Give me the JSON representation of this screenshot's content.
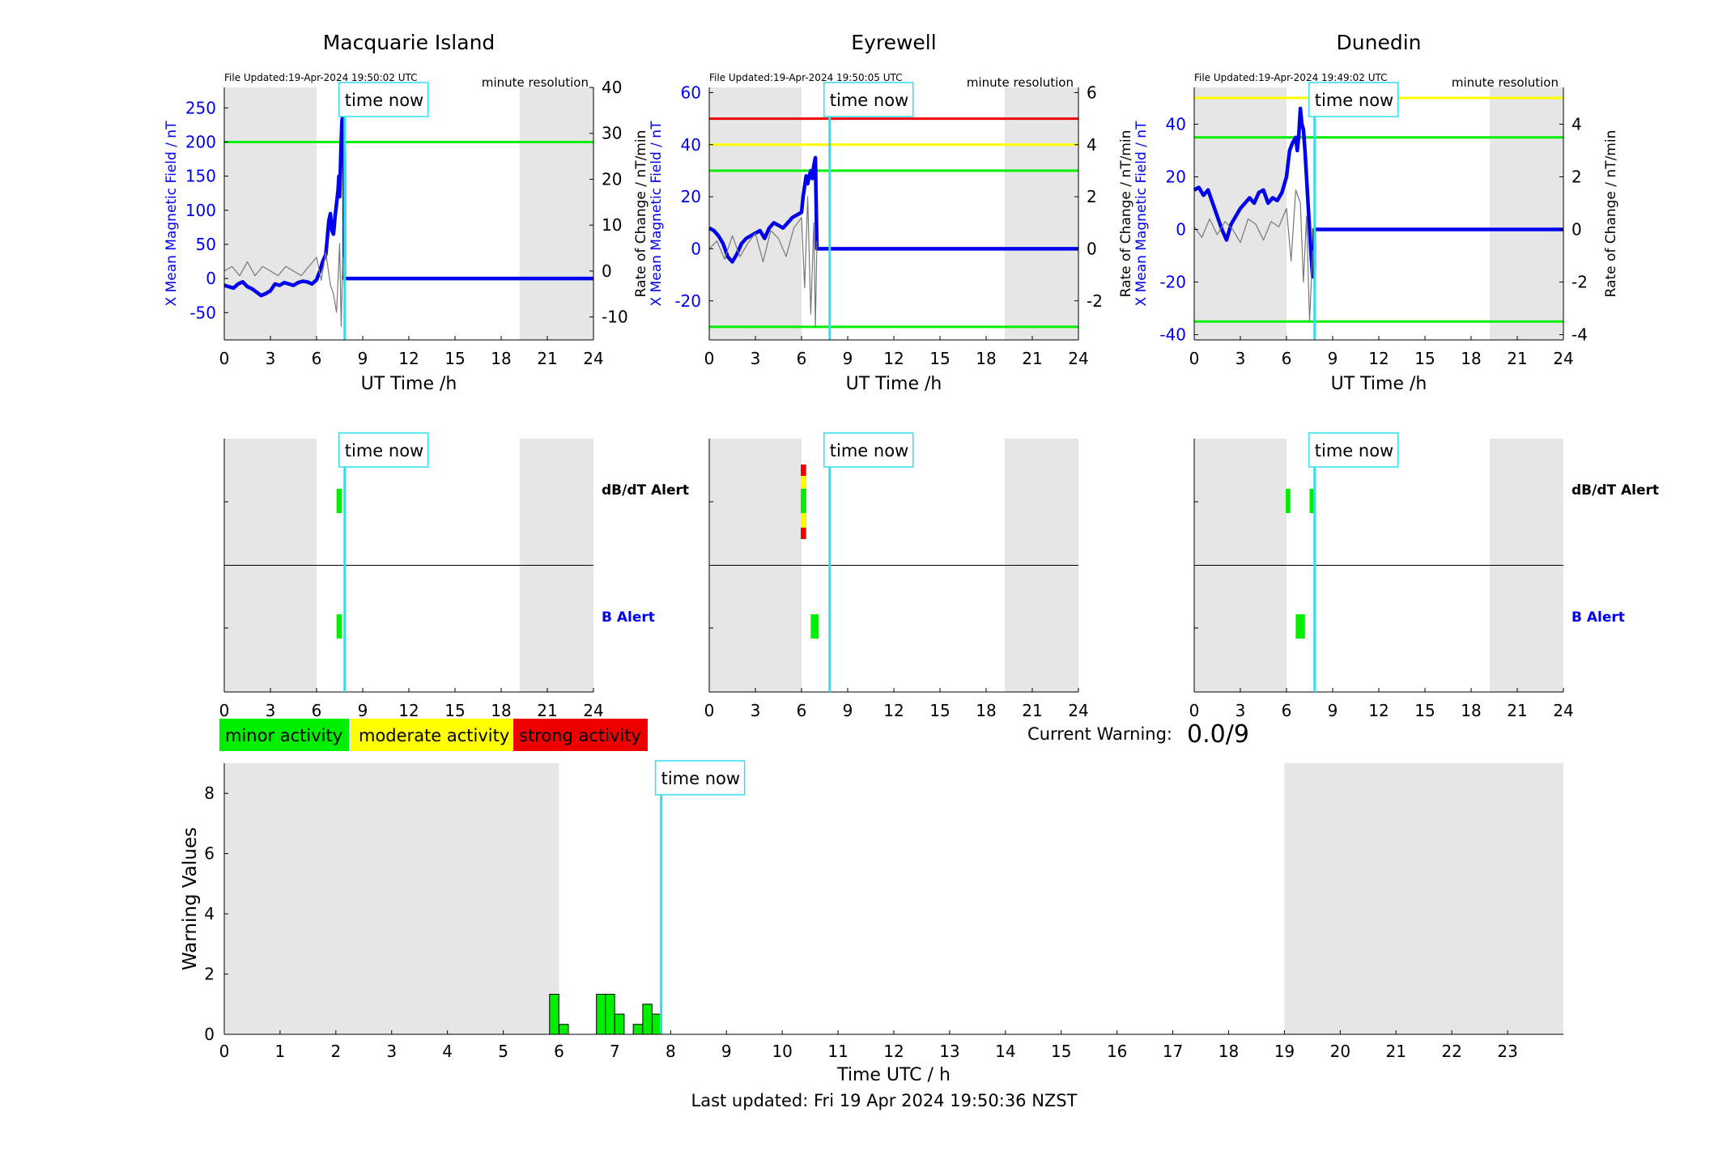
{
  "colors": {
    "blue": "#0000ee",
    "cyan": "#33ddee",
    "green": "#00ee00",
    "yellow": "#ffff00",
    "red": "#ee0000",
    "shade": "#e6e6e6",
    "black": "#000000",
    "noise": "#777777"
  },
  "common": {
    "time_now_label": "time now",
    "file_prefix": "File Updated:",
    "resolution_label": "minute resolution",
    "xlabel": "UT Time /h",
    "ylabel_left": "X Mean Magnetic Field / nT",
    "ylabel_right": "Rate of Change / nT/min",
    "dbdt_alert_label": "dB/dT Alert",
    "b_alert_label": "B Alert",
    "x_ticks": [
      0,
      3,
      6,
      9,
      12,
      15,
      18,
      21,
      24
    ],
    "night_shade_hours": [
      [
        0,
        6
      ],
      [
        19.2,
        24
      ]
    ],
    "time_now_hour": 7.83
  },
  "legend": {
    "minor": "minor activity",
    "moderate": "moderate activity",
    "strong": "strong activity"
  },
  "current_warning": {
    "label": "Current Warning:",
    "value": "0.0/9"
  },
  "footer": {
    "last_updated": "Last updated: Fri 19 Apr 2024 19:50:36 NZST"
  },
  "chart_data": [
    {
      "type": "line",
      "station": "Macquarie Island",
      "title": "Macquarie Island",
      "file_updated": "19-Apr-2024 19:50:02 UTC",
      "xlabel": "UT Time /h",
      "ylabel": "X Mean Magnetic Field / nT",
      "y2label": "Rate of Change / nT/min",
      "xlim": [
        0,
        24
      ],
      "ylim": [
        -90,
        280
      ],
      "yticks": [
        -50,
        0,
        50,
        100,
        150,
        200,
        250
      ],
      "y2lim": [
        -15,
        40
      ],
      "y2ticks": [
        -10,
        0,
        10,
        20,
        30,
        40
      ],
      "thresholds": [
        {
          "value": 200,
          "color": "green"
        }
      ],
      "series": [
        {
          "axis": "left",
          "color": "blue",
          "x": [
            0,
            0.3,
            0.6,
            0.9,
            1.2,
            1.5,
            1.8,
            2.1,
            2.4,
            2.7,
            3.0,
            3.3,
            3.6,
            3.9,
            4.2,
            4.5,
            4.8,
            5.1,
            5.4,
            5.7,
            6.0,
            6.2,
            6.4,
            6.6,
            6.7,
            6.8,
            6.9,
            7.0,
            7.1,
            7.2,
            7.3,
            7.4,
            7.45,
            7.5,
            7.55,
            7.6,
            7.65,
            7.7,
            7.75,
            7.8,
            7.8,
            24
          ],
          "y": [
            -10,
            -12,
            -14,
            -8,
            -5,
            -12,
            -15,
            -20,
            -25,
            -22,
            -18,
            -8,
            -10,
            -6,
            -8,
            -10,
            -6,
            -4,
            -5,
            -8,
            -2,
            10,
            25,
            35,
            60,
            85,
            95,
            70,
            65,
            90,
            110,
            130,
            150,
            120,
            160,
            200,
            230,
            240,
            210,
            180,
            0,
            0
          ]
        },
        {
          "axis": "right",
          "color": "noise",
          "x": [
            0,
            0.5,
            1.0,
            1.5,
            2.0,
            2.5,
            3.0,
            3.5,
            4.0,
            4.5,
            5.0,
            5.5,
            6.0,
            6.3,
            6.6,
            6.9,
            7.1,
            7.3,
            7.5,
            7.6,
            7.7,
            7.8
          ],
          "y": [
            0,
            1,
            -1,
            2,
            -1,
            1,
            0,
            -1,
            1,
            0,
            -1,
            1,
            3,
            -2,
            4,
            -3,
            -5,
            -9,
            6,
            -12,
            3,
            -4
          ]
        }
      ],
      "dbdt_alerts": [
        {
          "start": 7.3,
          "end": 7.65,
          "level": "minor"
        }
      ],
      "b_alerts": [
        {
          "start": 7.3,
          "end": 7.65,
          "level": "minor"
        }
      ]
    },
    {
      "type": "line",
      "station": "Eyrewell",
      "title": "Eyrewell",
      "file_updated": "19-Apr-2024 19:50:05 UTC",
      "xlabel": "UT Time /h",
      "ylabel": "X Mean Magnetic Field / nT",
      "y2label": "Rate of Change / nT/min",
      "xlim": [
        0,
        24
      ],
      "ylim": [
        -35,
        62
      ],
      "yticks": [
        -20,
        0,
        20,
        40,
        60
      ],
      "y2lim": [
        -3.5,
        6.2
      ],
      "y2ticks": [
        -2,
        0,
        2,
        4,
        6
      ],
      "thresholds": [
        {
          "value": 50,
          "color": "red"
        },
        {
          "value": 40,
          "color": "yellow"
        },
        {
          "value": 30,
          "color": "green"
        },
        {
          "value": -30,
          "color": "green"
        }
      ],
      "series": [
        {
          "axis": "left",
          "color": "blue",
          "x": [
            0,
            0.3,
            0.6,
            0.9,
            1.2,
            1.5,
            1.8,
            2.1,
            2.4,
            2.7,
            3.0,
            3.3,
            3.6,
            3.9,
            4.2,
            4.5,
            4.8,
            5.1,
            5.4,
            5.7,
            6.0,
            6.1,
            6.2,
            6.3,
            6.4,
            6.5,
            6.6,
            6.7,
            6.8,
            6.9,
            7.0,
            7.0,
            24
          ],
          "y": [
            8,
            7,
            5,
            2,
            -3,
            -5,
            -2,
            2,
            4,
            5,
            6,
            7,
            4,
            8,
            10,
            9,
            8,
            10,
            12,
            13,
            14,
            20,
            24,
            28,
            25,
            28,
            30,
            27,
            32,
            35,
            0,
            0,
            0
          ]
        },
        {
          "axis": "right",
          "color": "noise",
          "x": [
            0,
            0.5,
            1.0,
            1.5,
            2.0,
            2.5,
            3.0,
            3.5,
            4.0,
            4.5,
            5.0,
            5.5,
            6.0,
            6.2,
            6.4,
            6.6,
            6.8,
            6.9,
            7.0
          ],
          "y": [
            0,
            0.3,
            -0.4,
            0.5,
            -0.3,
            0.2,
            0.6,
            -0.5,
            0.7,
            0.4,
            -0.3,
            0.8,
            1.2,
            -1.5,
            2.0,
            -2.5,
            1.0,
            -3.0,
            0.3
          ]
        }
      ],
      "dbdt_alerts": [
        {
          "start": 5.95,
          "end": 6.3,
          "level": "strong"
        },
        {
          "start": 5.95,
          "end": 6.3,
          "level": "moderate"
        }
      ],
      "b_alerts": [
        {
          "start": 6.6,
          "end": 7.1,
          "level": "minor"
        }
      ]
    },
    {
      "type": "line",
      "station": "Dunedin",
      "title": "Dunedin",
      "file_updated": "19-Apr-2024 19:49:02 UTC",
      "xlabel": "UT Time /h",
      "ylabel": "X Mean Magnetic Field / nT",
      "y2label": "Rate of Change / nT/min",
      "xlim": [
        0,
        24
      ],
      "ylim": [
        -42,
        54
      ],
      "yticks": [
        -40,
        -20,
        0,
        20,
        40
      ],
      "y2lim": [
        -4.2,
        5.4
      ],
      "y2ticks": [
        -4,
        -2,
        0,
        2,
        4
      ],
      "thresholds": [
        {
          "value": 50,
          "color": "yellow"
        },
        {
          "value": 35,
          "color": "green"
        },
        {
          "value": -35,
          "color": "green"
        }
      ],
      "series": [
        {
          "axis": "left",
          "color": "blue",
          "x": [
            0,
            0.3,
            0.6,
            0.9,
            1.2,
            1.5,
            1.8,
            2.1,
            2.4,
            2.7,
            3.0,
            3.3,
            3.6,
            3.9,
            4.2,
            4.5,
            4.8,
            5.1,
            5.4,
            5.7,
            6.0,
            6.2,
            6.4,
            6.6,
            6.7,
            6.8,
            6.9,
            7.0,
            7.1,
            7.2,
            7.3,
            7.4,
            7.5,
            7.6,
            7.7,
            7.8,
            7.8,
            24
          ],
          "y": [
            15,
            16,
            13,
            15,
            10,
            5,
            0,
            -4,
            2,
            5,
            8,
            10,
            12,
            10,
            14,
            15,
            10,
            12,
            11,
            14,
            20,
            30,
            33,
            35,
            30,
            36,
            46,
            40,
            38,
            30,
            20,
            10,
            0,
            -10,
            -18,
            -15,
            0,
            0
          ]
        },
        {
          "axis": "right",
          "color": "noise",
          "x": [
            0,
            0.5,
            1.0,
            1.5,
            2.0,
            2.5,
            3.0,
            3.5,
            4.0,
            4.5,
            5.0,
            5.5,
            6.0,
            6.3,
            6.6,
            6.9,
            7.1,
            7.3,
            7.5,
            7.7
          ],
          "y": [
            0.1,
            -0.3,
            0.4,
            -0.2,
            0.3,
            0.0,
            -0.5,
            0.4,
            0.2,
            -0.4,
            0.3,
            0.1,
            0.8,
            -1.2,
            1.5,
            1.0,
            -2.0,
            0.5,
            -3.5,
            -0.8
          ]
        }
      ],
      "dbdt_alerts": [
        {
          "start": 5.95,
          "end": 6.25,
          "level": "minor"
        },
        {
          "start": 7.5,
          "end": 7.8,
          "level": "minor"
        }
      ],
      "b_alerts": [
        {
          "start": 6.6,
          "end": 7.2,
          "level": "minor"
        }
      ]
    },
    {
      "type": "bar",
      "title": "",
      "xlabel": "Time UTC / h",
      "ylabel": "Warning Values",
      "xlim": [
        0,
        24
      ],
      "ylim": [
        0,
        9
      ],
      "xticks": [
        0,
        1,
        2,
        3,
        4,
        5,
        6,
        7,
        8,
        9,
        10,
        11,
        12,
        13,
        14,
        15,
        16,
        17,
        18,
        19,
        20,
        21,
        22,
        23
      ],
      "yticks": [
        0,
        2,
        4,
        6,
        8
      ],
      "night_shade_hours": [
        [
          0,
          6
        ],
        [
          19,
          24
        ]
      ],
      "time_now_hour": 7.83,
      "bars": [
        {
          "x": 5.83,
          "value": 1.33
        },
        {
          "x": 6.0,
          "value": 0.33
        },
        {
          "x": 6.67,
          "value": 1.33
        },
        {
          "x": 6.83,
          "value": 1.33
        },
        {
          "x": 7.0,
          "value": 0.67
        },
        {
          "x": 7.33,
          "value": 0.33
        },
        {
          "x": 7.5,
          "value": 1.0
        },
        {
          "x": 7.67,
          "value": 0.67
        }
      ]
    }
  ]
}
